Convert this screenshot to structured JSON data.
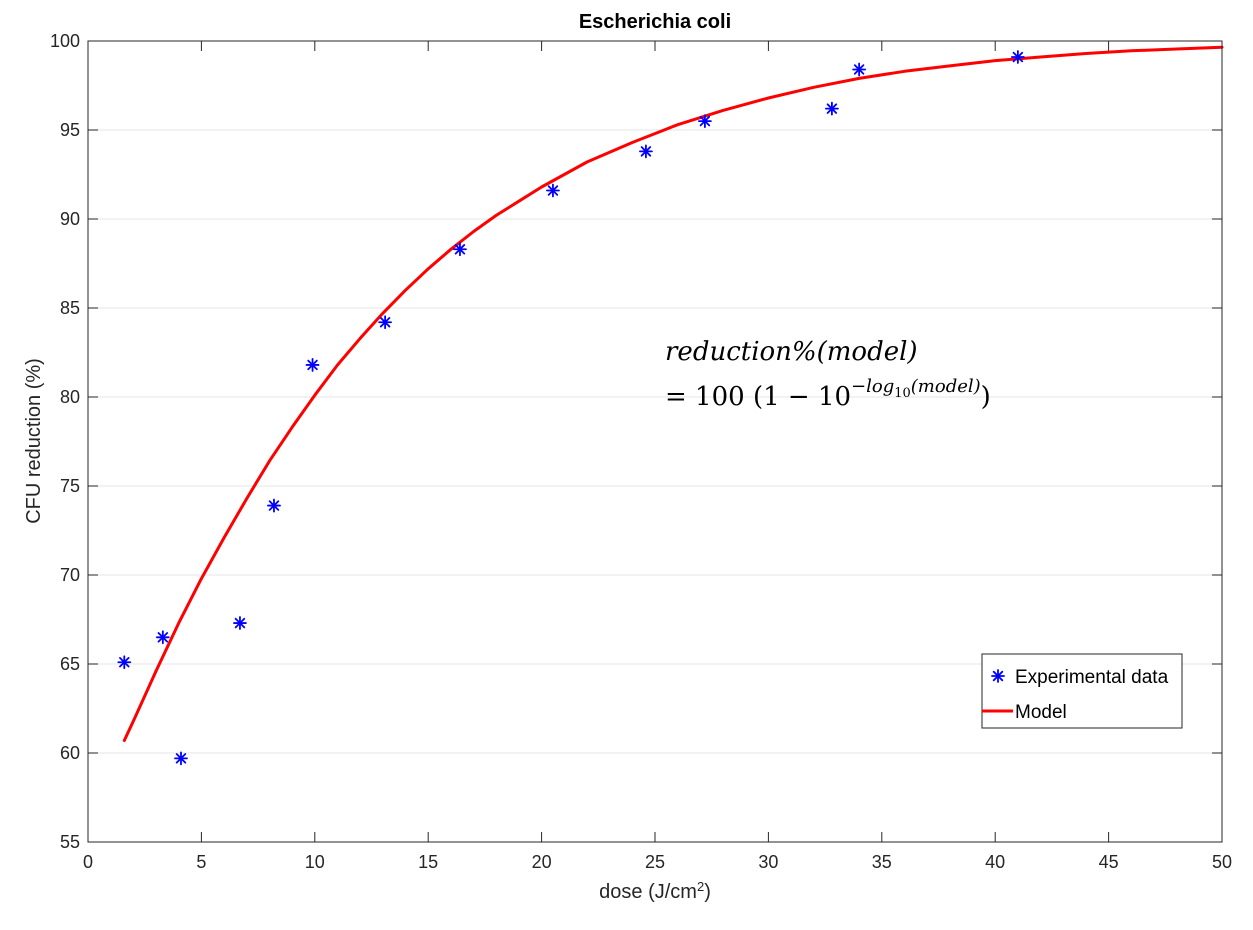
{
  "chart_data": {
    "type": "scatter",
    "title": "Escherichia coli",
    "xlabel": "dose (J/cm",
    "xlabel_sup": "2",
    "xlabel_end": ")",
    "ylabel": "CFU reduction (%)",
    "xlim": [
      0,
      50
    ],
    "ylim": [
      55,
      100
    ],
    "xticks": [
      0,
      5,
      10,
      15,
      20,
      25,
      30,
      35,
      40,
      45,
      50
    ],
    "yticks": [
      55,
      60,
      65,
      70,
      75,
      80,
      85,
      90,
      95,
      100
    ],
    "grid": "horizontal",
    "legend_position": "bottom-right",
    "series": [
      {
        "name": "Experimental data",
        "marker": "asterisk",
        "color": "#0000FF",
        "x": [
          1.6,
          3.3,
          4.1,
          6.7,
          8.2,
          9.9,
          13.1,
          16.4,
          20.5,
          24.6,
          27.2,
          32.8,
          34.0,
          41.0
        ],
        "y": [
          65.1,
          66.5,
          59.7,
          67.3,
          73.9,
          81.8,
          84.2,
          88.3,
          91.6,
          93.8,
          95.5,
          96.2,
          98.4,
          99.1
        ]
      },
      {
        "name": "Model",
        "line": true,
        "color": "#FF0000",
        "x": [
          1.6,
          2.0,
          3.0,
          4.0,
          5.0,
          6.0,
          7.0,
          8.0,
          9.0,
          10.0,
          11.0,
          12.0,
          13.0,
          14.0,
          15.0,
          16.0,
          17.0,
          18.0,
          19.0,
          20.0,
          22.0,
          24.0,
          26.0,
          28.0,
          30.0,
          32.0,
          34.0,
          36.0,
          38.0,
          40.0,
          42.0,
          44.0,
          46.0,
          48.0,
          50.0
        ],
        "y": [
          60.7,
          61.8,
          64.6,
          67.3,
          69.8,
          72.1,
          74.3,
          76.4,
          78.3,
          80.1,
          81.8,
          83.3,
          84.7,
          86.0,
          87.2,
          88.3,
          89.3,
          90.2,
          91.0,
          91.8,
          93.2,
          94.3,
          95.3,
          96.1,
          96.8,
          97.4,
          97.9,
          98.3,
          98.6,
          98.9,
          99.1,
          99.3,
          99.45,
          99.55,
          99.65
        ]
      }
    ],
    "annotation": {
      "line1": "reduction%(model)",
      "line2_prefix": "= 100 (1 − 10",
      "line2_exp_pre": "−log",
      "line2_exp_sub": "10",
      "line2_exp_post": "(model)",
      "line2_suffix": ")"
    }
  }
}
